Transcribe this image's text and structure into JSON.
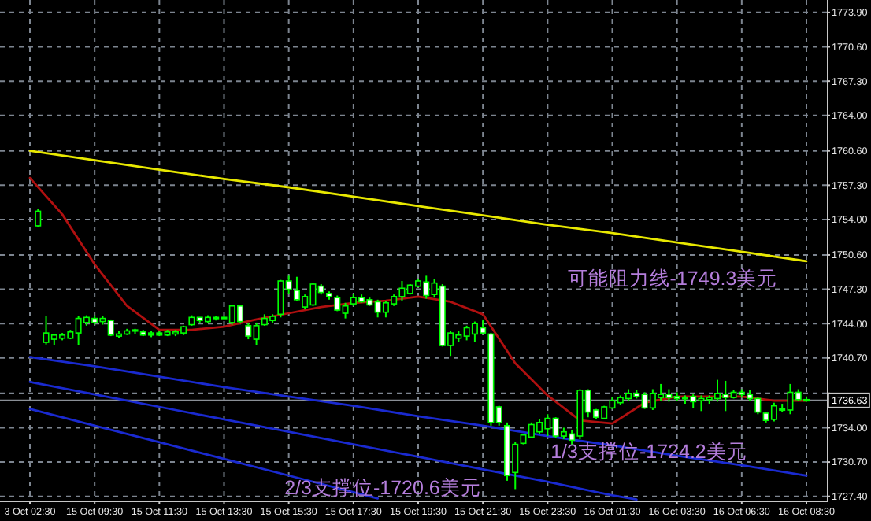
{
  "chart_data": {
    "type": "candlestick",
    "categories": [
      "3 Oct 02:30",
      null,
      null,
      null,
      null,
      null,
      null,
      null,
      "15 Oct 09:30",
      null,
      null,
      null,
      null,
      null,
      null,
      null,
      "15 Oct 11:30",
      null,
      null,
      null,
      null,
      null,
      null,
      null,
      "15 Oct 13:30",
      null,
      null,
      null,
      null,
      null,
      null,
      null,
      "15 Oct 15:30",
      null,
      null,
      null,
      null,
      null,
      null,
      null,
      "15 Oct 17:30",
      null,
      null,
      null,
      null,
      null,
      null,
      null,
      "15 Oct 19:30",
      null,
      null,
      null,
      null,
      null,
      null,
      null,
      "15 Oct 21:30",
      null,
      null,
      null,
      null,
      null,
      null,
      null,
      "15 Oct 23:30",
      null,
      null,
      null,
      null,
      null,
      null,
      null,
      "16 Oct 01:30",
      null,
      null,
      null,
      null,
      null,
      null,
      null,
      "16 Oct 03:30",
      null,
      null,
      null,
      null,
      null,
      null,
      null,
      "16 Oct 06:30",
      null,
      null,
      null,
      null,
      null,
      null,
      null,
      "16 Oct 08:30"
    ],
    "ohlc": [
      null,
      [
        1753.4,
        1755.0,
        1753.3,
        1754.8
      ],
      [
        1742.2,
        1744.7,
        1742.0,
        1743.1
      ],
      [
        1742.5,
        1743.0,
        1741.9,
        1742.9
      ],
      [
        1742.6,
        1743.1,
        1742.4,
        1742.9
      ],
      [
        1742.6,
        1743.4,
        1742.5,
        1743.2
      ],
      [
        1743.1,
        1744.7,
        1741.9,
        1744.5
      ],
      [
        1744.1,
        1744.8,
        1743.8,
        1744.6
      ],
      [
        1744.5,
        1744.8,
        1743.9,
        1744.1
      ],
      [
        1744.2,
        1744.7,
        1743.9,
        1744.5
      ],
      [
        1744.3,
        1744.4,
        1742.8,
        1742.9
      ],
      [
        1742.8,
        1743.3,
        1742.6,
        1743.0
      ],
      [
        1743.0,
        1743.5,
        1742.9,
        1743.3
      ],
      [
        1743.3,
        1743.5,
        1743.0,
        1743.4
      ],
      [
        1743.2,
        1743.4,
        1742.8,
        1742.9
      ],
      [
        1742.9,
        1743.3,
        1742.7,
        1743.1
      ],
      [
        1743.1,
        1743.3,
        1742.8,
        1742.9
      ],
      [
        1742.9,
        1743.4,
        1742.8,
        1743.2
      ],
      [
        1743.0,
        1743.4,
        1742.8,
        1743.2
      ],
      [
        1743.1,
        1743.8,
        1742.9,
        1743.7
      ],
      [
        1743.9,
        1744.8,
        1743.8,
        1744.6
      ],
      [
        1744.6,
        1744.6,
        1744.1,
        1744.3
      ],
      [
        1744.2,
        1744.8,
        1744.1,
        1744.6
      ],
      [
        1744.5,
        1744.7,
        1744.3,
        1744.6
      ],
      [
        1744.6,
        1744.7,
        1744.5,
        1744.6
      ],
      [
        1744.1,
        1745.8,
        1743.9,
        1745.7
      ],
      [
        1745.7,
        1745.8,
        1744.1,
        1744.2
      ],
      [
        1743.8,
        1744.0,
        1742.5,
        1742.8
      ],
      [
        1742.5,
        1744.1,
        1741.9,
        1743.8
      ],
      [
        1743.9,
        1744.9,
        1743.8,
        1744.5
      ],
      [
        1744.3,
        1744.9,
        1744.1,
        1744.7
      ],
      [
        1744.9,
        1748.2,
        1744.6,
        1748.1
      ],
      [
        1748.1,
        1748.6,
        1746.9,
        1747.3
      ],
      [
        1747.2,
        1748.5,
        1746.2,
        1746.3
      ],
      [
        1745.6,
        1746.8,
        1745.4,
        1746.6
      ],
      [
        1745.8,
        1747.9,
        1745.7,
        1747.8
      ],
      [
        1747.6,
        1747.8,
        1746.8,
        1747.0
      ],
      [
        1746.9,
        1747.1,
        1746.3,
        1746.6
      ],
      [
        1746.5,
        1746.7,
        1745.2,
        1745.3
      ],
      [
        1745.0,
        1746.0,
        1744.5,
        1745.7
      ],
      [
        1745.9,
        1746.9,
        1745.7,
        1746.5
      ],
      [
        1746.5,
        1746.8,
        1746.0,
        1746.1
      ],
      [
        1746.3,
        1746.5,
        1745.7,
        1745.8
      ],
      [
        1746.1,
        1746.3,
        1744.6,
        1745.1
      ],
      [
        1745.1,
        1746.2,
        1744.6,
        1746.0
      ],
      [
        1745.9,
        1746.8,
        1745.7,
        1746.6
      ],
      [
        1746.6,
        1748.1,
        1746.2,
        1747.4
      ],
      [
        1746.9,
        1747.8,
        1746.8,
        1747.7
      ],
      [
        1747.6,
        1748.3,
        1747.5,
        1748.1
      ],
      [
        1748.0,
        1748.6,
        1746.4,
        1746.7
      ],
      [
        1746.8,
        1748.3,
        1746.5,
        1747.9
      ],
      [
        1747.6,
        1747.8,
        1741.8,
        1741.9
      ],
      [
        1741.9,
        1743.3,
        1740.9,
        1743.1
      ],
      [
        1742.6,
        1743.3,
        1742.2,
        1742.9
      ],
      [
        1742.8,
        1743.8,
        1742.4,
        1743.6
      ],
      [
        1743.0,
        1744.2,
        1742.2,
        1744.0
      ],
      [
        1743.6,
        1744.4,
        1743.0,
        1743.1
      ],
      [
        1743.0,
        1743.1,
        1734.2,
        1734.5
      ],
      [
        1736.0,
        1736.1,
        1734.2,
        1734.5
      ],
      [
        1734.2,
        1734.5,
        1728.9,
        1729.4
      ],
      [
        1729.7,
        1732.6,
        1728.1,
        1732.4
      ],
      [
        1732.5,
        1733.4,
        1732.4,
        1733.3
      ],
      [
        1733.1,
        1734.5,
        1733.0,
        1734.3
      ],
      [
        1733.6,
        1734.8,
        1733.4,
        1734.5
      ],
      [
        1733.9,
        1735.3,
        1733.2,
        1734.9
      ],
      [
        1734.9,
        1735.0,
        1733.0,
        1733.2
      ],
      [
        1733.2,
        1734.0,
        1732.9,
        1733.6
      ],
      [
        1733.4,
        1733.8,
        1732.3,
        1732.8
      ],
      [
        1733.2,
        1737.7,
        1732.9,
        1737.6
      ],
      [
        1737.6,
        1737.7,
        1735.0,
        1735.5
      ],
      [
        1735.7,
        1735.8,
        1734.8,
        1735.0
      ],
      [
        1734.9,
        1736.1,
        1734.8,
        1736.0
      ],
      [
        1735.9,
        1736.9,
        1735.8,
        1736.6
      ],
      [
        1736.4,
        1737.1,
        1736.2,
        1736.9
      ],
      [
        1736.8,
        1737.7,
        1736.6,
        1737.3
      ],
      [
        1737.3,
        1737.6,
        1736.8,
        1737.0
      ],
      [
        1737.2,
        1737.4,
        1735.8,
        1735.9
      ],
      [
        1735.9,
        1737.7,
        1735.7,
        1737.3
      ],
      [
        1736.9,
        1738.2,
        1736.6,
        1737.2
      ],
      [
        1737.2,
        1737.7,
        1736.5,
        1736.9
      ],
      [
        1737.0,
        1737.4,
        1736.6,
        1736.8
      ],
      [
        1736.8,
        1737.1,
        1736.3,
        1736.9
      ],
      [
        1737.0,
        1737.2,
        1735.9,
        1736.5
      ],
      [
        1736.6,
        1737.1,
        1735.6,
        1736.8
      ],
      [
        1736.7,
        1737.1,
        1736.3,
        1736.9
      ],
      [
        1736.8,
        1738.6,
        1736.5,
        1737.3
      ],
      [
        1737.2,
        1738.5,
        1735.6,
        1736.9
      ],
      [
        1736.9,
        1737.6,
        1736.8,
        1737.4
      ],
      [
        1737.4,
        1737.7,
        1736.9,
        1737.2
      ],
      [
        1737.2,
        1737.6,
        1736.6,
        1736.8
      ],
      [
        1736.8,
        1736.9,
        1735.3,
        1735.5
      ],
      [
        1735.4,
        1735.5,
        1734.5,
        1734.7
      ],
      [
        1734.8,
        1736.4,
        1734.6,
        1736.1
      ],
      [
        1735.8,
        1736.3,
        1735.5,
        1735.7
      ],
      [
        1735.7,
        1738.2,
        1735.3,
        1737.4
      ],
      [
        1737.4,
        1737.7,
        1736.6,
        1736.7
      ],
      [
        1736.7,
        1737.0,
        1736.5,
        1736.7
      ]
    ],
    "color": "#00ff00",
    "series": [
      {
        "type": "line",
        "color": "#b01010",
        "values": [
          1758.0,
          null,
          null,
          null,
          1754.5,
          null,
          null,
          null,
          1749.7,
          null,
          null,
          null,
          1745.7,
          null,
          null,
          null,
          1743.4,
          null,
          null,
          null,
          1743.4,
          null,
          null,
          null,
          1743.7,
          null,
          null,
          null,
          1744.4,
          null,
          null,
          null,
          1745.0,
          null,
          null,
          null,
          1745.6,
          null,
          null,
          null,
          1746.0,
          null,
          null,
          null,
          1746.2,
          null,
          null,
          null,
          1746.6,
          null,
          null,
          null,
          1746.1,
          null,
          null,
          null,
          1744.9,
          null,
          null,
          null,
          1740.2,
          null,
          null,
          null,
          1737.1,
          null,
          null,
          null,
          1734.7,
          null,
          null,
          null,
          1734.4,
          null,
          null,
          null,
          1736.4,
          null,
          null,
          null,
          1737.0,
          null,
          null,
          null,
          1737.0,
          null,
          null,
          null,
          1737.0,
          null,
          null,
          null,
          1736.6,
          null,
          null,
          null,
          1736.6
        ]
      },
      {
        "type": "line",
        "color": "#e8e800",
        "values": [
          1760.6,
          null,
          null,
          null,
          null,
          null,
          null,
          null,
          1759.7,
          null,
          null,
          null,
          null,
          null,
          null,
          null,
          1758.8,
          null,
          null,
          null,
          null,
          null,
          null,
          null,
          1757.9,
          null,
          null,
          null,
          null,
          null,
          null,
          null,
          1757.1,
          null,
          null,
          null,
          null,
          null,
          null,
          null,
          1756.2,
          null,
          null,
          null,
          null,
          null,
          null,
          null,
          1755.3,
          null,
          null,
          null,
          null,
          null,
          null,
          null,
          1754.4,
          null,
          null,
          null,
          null,
          null,
          null,
          null,
          1753.5,
          null,
          null,
          null,
          null,
          null,
          null,
          null,
          1752.7,
          null,
          null,
          null,
          null,
          null,
          null,
          null,
          1751.8,
          null,
          null,
          null,
          null,
          null,
          null,
          null,
          1750.9,
          null,
          null,
          null,
          null,
          null,
          null,
          null,
          1750.0
        ]
      },
      {
        "type": "line",
        "color": "#1a2ad0",
        "values": [
          1740.8,
          null,
          null,
          null,
          null,
          null,
          null,
          null,
          1739.9,
          null,
          null,
          null,
          null,
          null,
          null,
          null,
          1738.9,
          null,
          null,
          null,
          null,
          null,
          null,
          null,
          1737.9,
          null,
          null,
          null,
          null,
          null,
          null,
          null,
          1737.0,
          null,
          null,
          null,
          null,
          null,
          null,
          null,
          1736.1,
          null,
          null,
          null,
          null,
          null,
          null,
          null,
          1735.1,
          null,
          null,
          null,
          null,
          null,
          null,
          null,
          1734.2,
          null,
          null,
          null,
          null,
          null,
          null,
          null,
          1733.2,
          null,
          null,
          null,
          null,
          null,
          null,
          null,
          1732.3,
          null,
          null,
          null,
          null,
          null,
          null,
          null,
          1731.3,
          null,
          null,
          null,
          null,
          null,
          null,
          null,
          1730.4,
          null,
          null,
          null,
          null,
          null,
          null,
          null,
          1729.4
        ]
      },
      {
        "type": "line",
        "color": "#1a2ad0",
        "values": [
          1738.4,
          null,
          null,
          null,
          null,
          null,
          null,
          null,
          1737.2,
          null,
          null,
          null,
          null,
          null,
          null,
          null,
          1736.0,
          null,
          null,
          null,
          null,
          null,
          null,
          null,
          1734.8,
          null,
          null,
          null,
          null,
          null,
          null,
          null,
          1733.6,
          null,
          null,
          null,
          null,
          null,
          null,
          null,
          1732.4,
          null,
          null,
          null,
          null,
          null,
          null,
          null,
          1731.2,
          null,
          null,
          null,
          null,
          null,
          null,
          null,
          1730.0,
          null,
          null,
          null,
          null,
          null,
          null,
          null,
          1728.8,
          null,
          null,
          null,
          null,
          null,
          null,
          null,
          1727.5,
          null,
          null,
          1727.1,
          null,
          null,
          null,
          null,
          null,
          null,
          null,
          null,
          null,
          null,
          null,
          null,
          null,
          null,
          null,
          null,
          null,
          null,
          null,
          null,
          null
        ]
      },
      {
        "type": "line",
        "color": "#1a2ad0",
        "values": [
          1735.8,
          null,
          null,
          null,
          null,
          null,
          null,
          null,
          1734.2,
          null,
          null,
          null,
          null,
          null,
          null,
          null,
          1732.6,
          null,
          null,
          null,
          null,
          null,
          null,
          null,
          1731.0,
          null,
          null,
          null,
          null,
          null,
          null,
          null,
          1729.4,
          null,
          null,
          null,
          null,
          null,
          null,
          null,
          1727.8,
          null,
          null,
          1727.2,
          null,
          null,
          null,
          null,
          null,
          null,
          null,
          null,
          null,
          null,
          null,
          null,
          null,
          null,
          null,
          null,
          null,
          null,
          null,
          null,
          null,
          null,
          null,
          null,
          null,
          null,
          null,
          null,
          null,
          null,
          null,
          null,
          null,
          null,
          null,
          null,
          null,
          null,
          null,
          null,
          null,
          null,
          null,
          null,
          null,
          null,
          null,
          null,
          null,
          null,
          null,
          null,
          null
        ]
      }
    ],
    "ylim": [
      1727.0,
      1775.1
    ],
    "yticks": [
      {
        "value": 1773.9,
        "label": "1773.90"
      },
      {
        "value": 1770.6,
        "label": "1770.60"
      },
      {
        "value": 1767.3,
        "label": "1767.30"
      },
      {
        "value": 1764.0,
        "label": "1764.00"
      },
      {
        "value": 1760.6,
        "label": "1760.60"
      },
      {
        "value": 1757.3,
        "label": "1757.30"
      },
      {
        "value": 1754.0,
        "label": "1754.00"
      },
      {
        "value": 1750.6,
        "label": "1750.60"
      },
      {
        "value": 1747.3,
        "label": "1747.30"
      },
      {
        "value": 1744.0,
        "label": "1744.00"
      },
      {
        "value": 1740.7,
        "label": "1740.70"
      },
      {
        "value": 1737.3,
        "label": null
      },
      {
        "value": 1734.0,
        "label": "1734.00"
      },
      {
        "value": 1730.7,
        "label": "1730.70"
      },
      {
        "value": 1727.4,
        "label": "1727.40"
      }
    ],
    "ref_lines": [
      {
        "axis": "y",
        "value": 1736.63,
        "label": "1736.63",
        "color": "#8a8f96"
      }
    ],
    "grid": true,
    "annotations": [
      "可能阻力线-1749.3美元",
      "1/3支撑位-1724.2美元",
      "2/3支撑位-1720.6美元"
    ]
  }
}
